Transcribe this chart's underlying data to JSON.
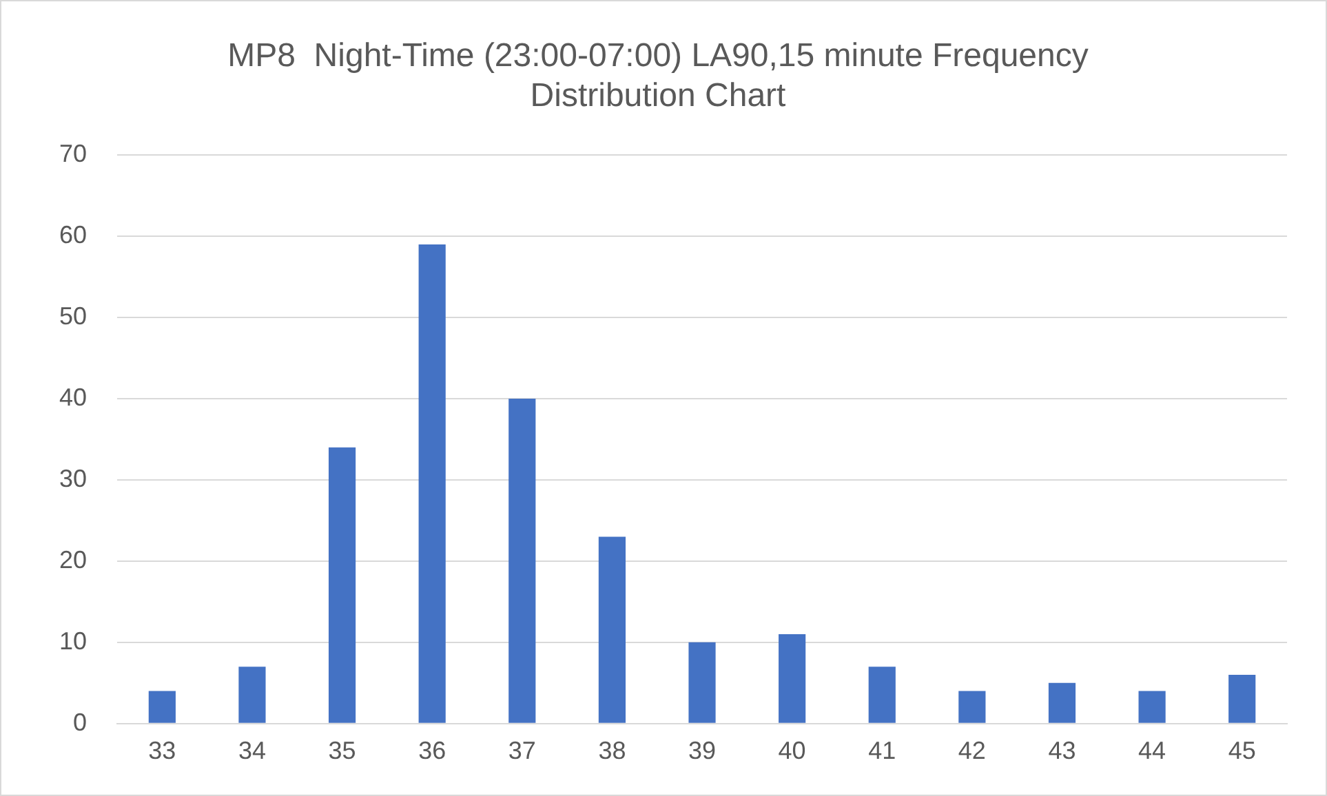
{
  "chart_data": {
    "type": "bar",
    "title": "MP8  Night-Time (23:00-07:00) LA90,15 minute Frequency Distribution Chart",
    "categories": [
      "33",
      "34",
      "35",
      "36",
      "37",
      "38",
      "39",
      "40",
      "41",
      "42",
      "43",
      "44",
      "45"
    ],
    "values": [
      4,
      7,
      34,
      59,
      40,
      23,
      10,
      11,
      7,
      4,
      5,
      4,
      6
    ],
    "color": "#4472c4",
    "ylim": [
      0,
      70
    ],
    "yticks": [
      0,
      10,
      20,
      30,
      40,
      50,
      60,
      70
    ],
    "grid": "y"
  }
}
